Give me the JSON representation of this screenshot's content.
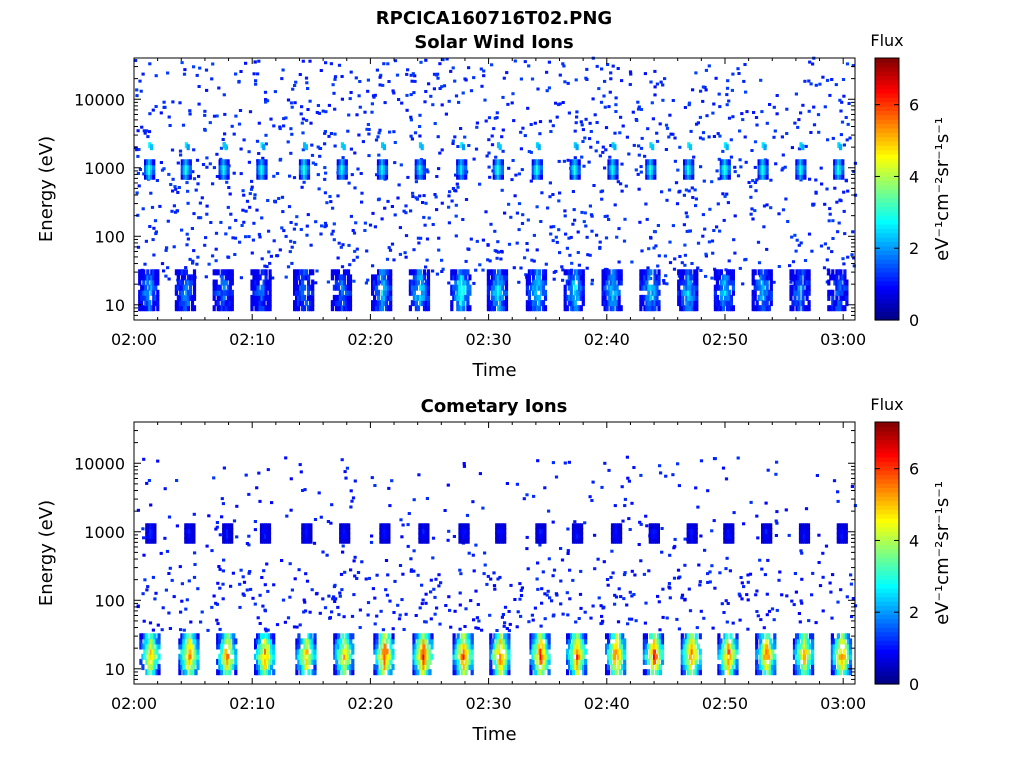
{
  "figure": {
    "filename": "RPCICA160716T02.PNG"
  },
  "chart_data": [
    {
      "type": "heatmap",
      "title": "Solar Wind Ions",
      "xlabel": "Time",
      "ylabel": "Energy (eV)",
      "y_scale": "log",
      "xlim": [
        "02:00",
        "03:01"
      ],
      "ylim": [
        6,
        40000
      ],
      "x_ticks": [
        "02:00",
        "02:10",
        "02:20",
        "02:30",
        "02:40",
        "02:50",
        "03:00"
      ],
      "y_ticks": [
        "10",
        "100",
        "1000",
        "10000"
      ],
      "colorbar": {
        "label_top": "Flux",
        "label_side": "eV⁻¹cm⁻²sr⁻¹s⁻¹",
        "range": [
          0,
          7.3
        ],
        "ticks": [
          "0",
          "2",
          "4",
          "6"
        ],
        "colormap": "jet"
      },
      "sweep_times_min": [
        1.2,
        4.3,
        7.5,
        10.7,
        14.3,
        17.5,
        20.9,
        24.1,
        27.6,
        30.7,
        34.0,
        37.2,
        40.4,
        43.6,
        46.8,
        49.9,
        53.1,
        56.3,
        59.5
      ],
      "band_1000eV_intensity": [
        3.2,
        3.2,
        3.0,
        3.0,
        3.3,
        3.0,
        3.0,
        2.8,
        2.8,
        3.2,
        3.1,
        3.2,
        3.0,
        3.2,
        3.0,
        3.3,
        3.2,
        3.0,
        3.2
      ],
      "band_low_energy_intensity": [
        2.0,
        1.8,
        1.6,
        1.5,
        1.8,
        1.6,
        2.4,
        2.6,
        2.8,
        2.6,
        2.6,
        2.6,
        2.3,
        2.4,
        2.2,
        2.2,
        2.0,
        1.8,
        1.6
      ],
      "background_level": 1.0
    },
    {
      "type": "heatmap",
      "title": "Cometary Ions",
      "xlabel": "Time",
      "ylabel": "Energy (eV)",
      "y_scale": "log",
      "xlim": [
        "02:00",
        "03:01"
      ],
      "ylim": [
        6,
        40000
      ],
      "x_ticks": [
        "02:00",
        "02:10",
        "02:20",
        "02:30",
        "02:40",
        "02:50",
        "03:00"
      ],
      "y_ticks": [
        "10",
        "100",
        "1000",
        "10000"
      ],
      "colorbar": {
        "label_top": "Flux",
        "label_side": "eV⁻¹cm⁻²sr⁻¹s⁻¹",
        "range": [
          0,
          7.3
        ],
        "ticks": [
          "0",
          "2",
          "4",
          "6"
        ],
        "colormap": "jet"
      },
      "sweep_times_min": [
        1.3,
        4.6,
        7.8,
        11.0,
        14.5,
        17.7,
        21.1,
        24.4,
        27.8,
        30.9,
        34.3,
        37.4,
        40.7,
        43.9,
        47.1,
        50.2,
        53.4,
        56.6,
        59.8
      ],
      "band_low_energy_intensity": [
        5.0,
        5.6,
        5.4,
        5.4,
        5.0,
        5.0,
        6.0,
        6.2,
        5.9,
        5.9,
        6.0,
        5.8,
        5.8,
        6.0,
        5.8,
        5.8,
        5.5,
        5.2,
        5.6
      ],
      "band_1000eV_intensity": [
        1.1,
        1.0,
        1.0,
        1.0,
        1.0,
        1.0,
        1.0,
        1.0,
        1.0,
        1.0,
        1.0,
        1.0,
        1.0,
        1.0,
        1.0,
        1.0,
        1.0,
        1.0,
        1.0
      ],
      "background_level": 0.9
    }
  ]
}
